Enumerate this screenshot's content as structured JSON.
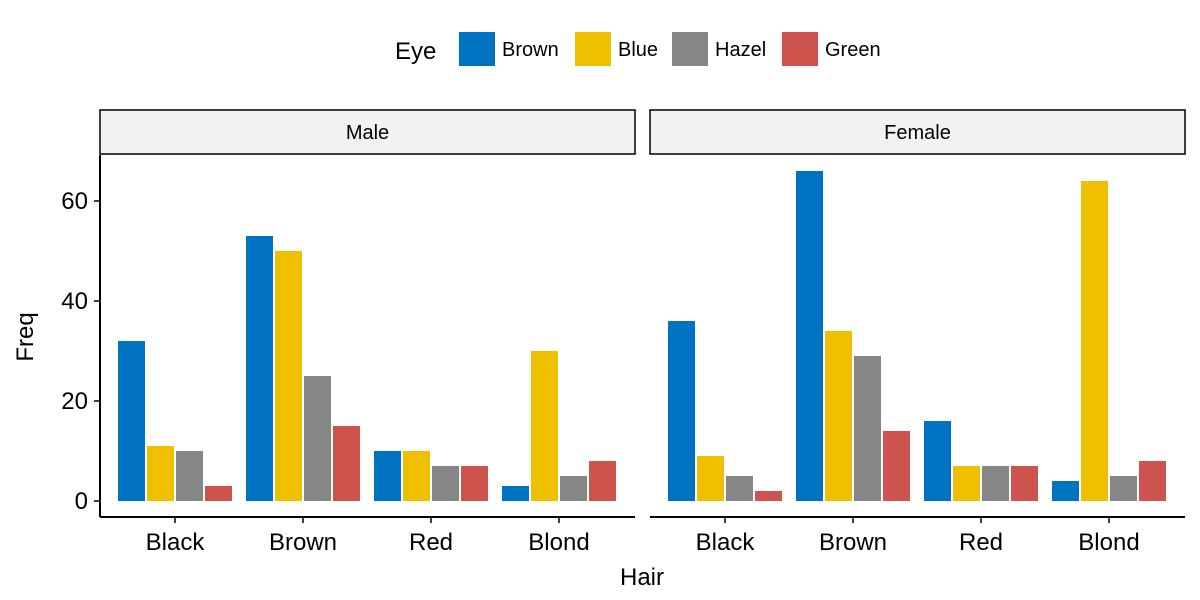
{
  "chart_data": {
    "type": "bar",
    "xlabel": "Hair",
    "ylabel": "Freq",
    "ylim": [
      0,
      68
    ],
    "yticks": [
      0,
      20,
      40,
      60
    ],
    "legend": {
      "title": "Eye",
      "position": "top"
    },
    "categories": [
      "Black",
      "Brown",
      "Red",
      "Blond"
    ],
    "series_colors": [
      "#0073C2",
      "#EFC000",
      "#868686",
      "#CD534C"
    ],
    "panels": [
      {
        "title": "Male",
        "series": [
          {
            "name": "Brown",
            "values": [
              32,
              53,
              10,
              3
            ]
          },
          {
            "name": "Blue",
            "values": [
              11,
              50,
              10,
              30
            ]
          },
          {
            "name": "Hazel",
            "values": [
              10,
              25,
              7,
              5
            ]
          },
          {
            "name": "Green",
            "values": [
              3,
              15,
              7,
              8
            ]
          }
        ]
      },
      {
        "title": "Female",
        "series": [
          {
            "name": "Brown",
            "values": [
              36,
              66,
              16,
              4
            ]
          },
          {
            "name": "Blue",
            "values": [
              9,
              34,
              7,
              64
            ]
          },
          {
            "name": "Hazel",
            "values": [
              5,
              29,
              7,
              5
            ]
          },
          {
            "name": "Green",
            "values": [
              2,
              14,
              7,
              8
            ]
          }
        ]
      }
    ]
  }
}
